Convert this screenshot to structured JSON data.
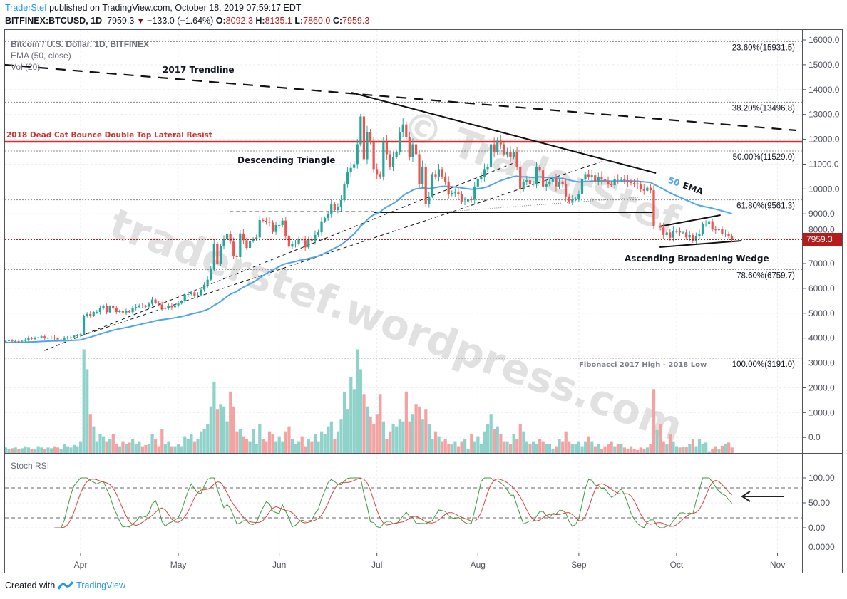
{
  "header": {
    "author": "TraderStef",
    "published": " published on TradingView.com, October 18, 2019 07:59:17 EDT",
    "symbol": "BITFINEX:BTCUSD, 1D",
    "last": "7959.3",
    "change": "−133.0 (−1.64%)",
    "o_label": "O:",
    "o": "8092.3",
    "h_label": "H:",
    "h": "8135.1",
    "l_label": "L:",
    "l": "7860.0",
    "c_label": "C:",
    "c": "7959.3"
  },
  "footer": {
    "created": "Created with",
    "brand": "TradingView"
  },
  "legend": {
    "title": "Bitcoin / U.S. Dollar, 1D, BITFINEX",
    "ema": "EMA (50, close)",
    "vol": "Vol (20)",
    "stoch": "Stoch RSI"
  },
  "watermark": {
    "line1": "traderstef.wordpress.com",
    "line2": "© TraderStef"
  },
  "colors": {
    "up": "#26a69a",
    "down": "#ef5350",
    "vol_up": "#8fd2ca",
    "vol_down": "#f4a3a3",
    "ema": "#4ea5ef",
    "stoch_k": "#3d9a3d",
    "stoch_d": "#d9433f",
    "resist": "#d32f2f",
    "last_price": "#b71c1c"
  },
  "chart_data": {
    "type": "candlestick",
    "title": "Bitcoin / U.S. Dollar, 1D, BITFINEX",
    "start_date": "2019-03-08",
    "end_date": "2019-10-18",
    "ylim": [
      0,
      16000
    ],
    "y_ticks": [
      "16000.0",
      "15000.0",
      "14000.0",
      "13000.0",
      "12000.0",
      "11000.0",
      "10000.0",
      "9000.0",
      "8000.0",
      "7000.0",
      "6000.0",
      "5000.0",
      "4000.0",
      "3000.0",
      "2000.0",
      "1000.0",
      "0.0"
    ],
    "x_ticks": [
      {
        "label": "Apr",
        "index": 24
      },
      {
        "label": "May",
        "index": 54
      },
      {
        "label": "Jun",
        "index": 85
      },
      {
        "label": "Jul",
        "index": 115
      },
      {
        "label": "Aug",
        "index": 146
      },
      {
        "label": "Sep",
        "index": 177
      },
      {
        "label": "Oct",
        "index": 207
      },
      {
        "label": "Nov",
        "index": 238
      }
    ],
    "last_price": "7959.3",
    "closes": [
      3870,
      3880,
      3920,
      3870,
      3880,
      3870,
      3890,
      3930,
      4000,
      3980,
      3990,
      4030,
      4070,
      3990,
      4010,
      4020,
      3990,
      3940,
      3940,
      3990,
      4030,
      4030,
      4100,
      4105,
      4150,
      4900,
      4970,
      4900,
      5050,
      5050,
      5200,
      5290,
      5040,
      5280,
      5200,
      5050,
      5100,
      5030,
      5080,
      5040,
      5220,
      5250,
      5310,
      5300,
      5260,
      5380,
      5550,
      5420,
      5350,
      5180,
      5220,
      5300,
      5240,
      5320,
      5390,
      5480,
      5750,
      5770,
      5840,
      5700,
      5730,
      5950,
      6150,
      6350,
      6800,
      7800,
      7000,
      7700,
      7980,
      8190,
      7880,
      7310,
      7260,
      8210,
      7940,
      7630,
      7900,
      8000,
      8050,
      8750,
      8720,
      8680,
      8650,
      8270,
      8550,
      8550,
      8730,
      8120,
      7680,
      7780,
      7800,
      8000,
      7940,
      7650,
      7990,
      7920,
      8150,
      8260,
      8700,
      8830,
      9000,
      9380,
      9150,
      9280,
      9550,
      10200,
      10700,
      10850,
      11000,
      11800,
      12920,
      11200,
      12300,
      11900,
      10800,
      10600,
      10500,
      11900,
      11400,
      10900,
      11300,
      11500,
      12300,
      12600,
      12100,
      11300,
      11800,
      11400,
      10200,
      10900,
      9400,
      9700,
      10600,
      10500,
      10800,
      10500,
      10300,
      9800,
      9840,
      9860,
      9800,
      9500,
      9500,
      9580,
      9570,
      10100,
      10400,
      10500,
      10800,
      10900,
      11800,
      11500,
      11950,
      11800,
      11400,
      11500,
      11300,
      11500,
      10900,
      10000,
      10300,
      10350,
      10200,
      10200,
      10900,
      10750,
      10100,
      10200,
      10300,
      10400,
      10100,
      10300,
      10200,
      9700,
      9500,
      9580,
      9600,
      9800,
      10400,
      10600,
      10500,
      10550,
      10300,
      10480,
      10380,
      10320,
      10200,
      10150,
      10400,
      10390,
      10400,
      10350,
      10280,
      10240,
      10220,
      10200,
      10000,
      9930,
      10050,
      9950,
      8520,
      8520,
      8450,
      8150,
      8250,
      8040,
      8300,
      8300,
      8250,
      8250,
      8050,
      8150,
      7900,
      8120,
      8200,
      8600,
      8600,
      8700,
      8370,
      8340,
      8400,
      8200,
      8200,
      8090,
      7959.3
    ],
    "volume_baseline": -570,
    "volume": [
      -300,
      -350,
      -400,
      -380,
      -350,
      -400,
      -380,
      -300,
      -350,
      -400,
      -420,
      -300,
      -350,
      -400,
      -350,
      -380,
      -300,
      -350,
      -400,
      -200,
      -300,
      -350,
      -250,
      -300,
      -100,
      3600,
      2800,
      1000,
      500,
      -100,
      200,
      100,
      -100,
      0,
      200,
      -200,
      -300,
      -100,
      -200,
      -150,
      0,
      -200,
      -100,
      -300,
      -250,
      -200,
      200,
      0,
      -300,
      400,
      -200,
      -100,
      -300,
      -300,
      -200,
      -300,
      100,
      0,
      200,
      -100,
      0,
      300,
      400,
      600,
      1300,
      2300,
      1200,
      1400,
      1300,
      700,
      1900,
      1300,
      300,
      400,
      100,
      0,
      -100,
      400,
      -200,
      600,
      0,
      -100,
      300,
      200,
      -100,
      100,
      -100,
      300,
      500,
      0,
      -200,
      -100,
      100,
      -300,
      0,
      -100,
      200,
      -100,
      300,
      200,
      500,
      700,
      0,
      300,
      800,
      1900,
      1200,
      2500,
      2000,
      3600,
      2800,
      1800,
      1300,
      900,
      600,
      1000,
      1800,
      700,
      0,
      300,
      600,
      500,
      800,
      700,
      1900,
      700,
      1000,
      1400,
      1300,
      800,
      1200,
      600,
      0,
      300,
      100,
      -100,
      0,
      -200,
      -200,
      -100,
      -300,
      -100,
      0,
      -400,
      200,
      -100,
      100,
      -200,
      300,
      600,
      1000,
      400,
      500,
      200,
      -100,
      -100,
      -200,
      200,
      0,
      600,
      300,
      -100,
      -200,
      -100,
      -200,
      0,
      -100,
      -200,
      -200,
      -400,
      -300,
      0,
      -100,
      300,
      -100,
      -200,
      -200,
      -100,
      -300,
      -100,
      100,
      -100,
      -300,
      -200,
      -400,
      -300,
      -200,
      -100,
      -300,
      -200,
      -200,
      -350,
      -400,
      -300,
      -400,
      -450,
      -350,
      -400,
      -350,
      -200,
      2000,
      350,
      600,
      -100,
      -200,
      200,
      -100,
      -300,
      -350,
      -320,
      -340,
      -200,
      0,
      -300,
      0,
      -200,
      -150,
      -500,
      -400,
      -300,
      -420,
      -280,
      -200,
      -150,
      -350
    ],
    "ema_period": 50,
    "stoch": {
      "ylim": [
        0,
        100
      ],
      "ticks": [
        "100.00",
        "50.00",
        "0.00"
      ],
      "bands": [
        80,
        20
      ],
      "extra_pane_tick": "0.0000"
    },
    "fib_levels": [
      {
        "label": "23.60%(15931.5)",
        "price": 15931.5
      },
      {
        "label": "38.20%(13496.8)",
        "price": 13496.8
      },
      {
        "label": "50.00%(11529.0)",
        "price": 11529.0
      },
      {
        "label": "61.80%(9561.3)",
        "price": 9561.3
      },
      {
        "label": "78.60%(6759.7)",
        "price": 6759.7
      },
      {
        "label": "100.00%(3191.0)",
        "price": 3191.0
      }
    ],
    "resistance": {
      "label": "2018 Dead Cat Bounce Double Top Lateral Resist",
      "price": 11900
    },
    "trendlines": [
      {
        "name": "2017-trendline",
        "from": [
          0.6,
          15000
        ],
        "to": [
          243.8,
          12360
        ],
        "style": "bigdash"
      },
      {
        "name": "triangle-top",
        "from": [
          107.2,
          13879
        ],
        "to": [
          200.7,
          10640
        ],
        "style": "solid"
      },
      {
        "name": "triangle-base",
        "from": [
          114.2,
          9064
        ],
        "to": [
          200.2,
          9064
        ],
        "style": "solid"
      },
      {
        "name": "prior-high",
        "from": [
          69.8,
          9090
        ],
        "to": [
          114.2,
          9090
        ],
        "style": "dash"
      },
      {
        "name": "support-dash-a",
        "from": [
          12.9,
          3500
        ],
        "to": [
          159,
          11150
        ],
        "style": "dash"
      },
      {
        "name": "support-dash-b",
        "from": [
          24.4,
          4100
        ],
        "to": [
          184,
          11100
        ],
        "style": "dash"
      },
      {
        "name": "support-dotted",
        "from": [
          134,
          9064
        ],
        "to": [
          199,
          9700
        ],
        "style": "dot"
      },
      {
        "name": "wedge-upper",
        "from": [
          201.8,
          8491
        ],
        "to": [
          220.5,
          8949
        ],
        "style": "solid"
      },
      {
        "name": "wedge-lower",
        "from": [
          201.8,
          7660
        ],
        "to": [
          227,
          7918
        ],
        "style": "solid"
      }
    ],
    "annotations": {
      "trendline": "2017 Trendline",
      "triangle": "Descending Triangle",
      "ema": "50 EMA",
      "ema_num": "50",
      "ema_txt": "EMA",
      "wedge": "Ascending Broadening Wedge",
      "fib": "Fibonacci 2017 High - 2018 Low"
    }
  }
}
